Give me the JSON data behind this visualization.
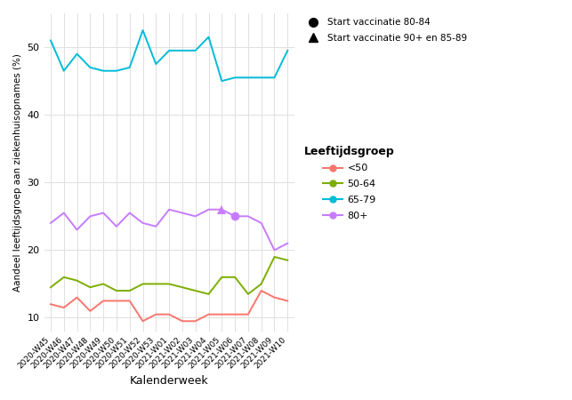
{
  "weeks": [
    "2020-W45",
    "2020-W46",
    "2020-W47",
    "2020-W48",
    "2020-W49",
    "2020-W50",
    "2020-W51",
    "2020-W52",
    "2020-W53",
    "2021-W01",
    "2021-W02",
    "2021-W03",
    "2021-W04",
    "2021-W05",
    "2021-W06",
    "2021-W07",
    "2021-W08",
    "2021-W09",
    "2021-W10"
  ],
  "lt50": [
    12,
    11.5,
    13,
    11,
    12.5,
    12.5,
    12.5,
    9.5,
    10.5,
    10.5,
    9.5,
    9.5,
    10.5,
    10.5,
    10.5,
    10.5,
    14,
    13,
    12.5
  ],
  "lt5064": [
    14.5,
    16,
    15.5,
    14.5,
    15,
    14,
    14,
    15,
    15,
    15,
    14.5,
    14,
    13.5,
    16,
    16,
    13.5,
    15,
    19,
    18.5
  ],
  "lt6579": [
    51,
    46.5,
    49,
    47,
    46.5,
    46.5,
    47,
    52.5,
    47.5,
    49.5,
    49.5,
    49.5,
    51.5,
    45,
    45.5,
    45.5,
    45.5,
    45.5,
    49.5
  ],
  "lt80": [
    24,
    25.5,
    23,
    25,
    25.5,
    23.5,
    25.5,
    24,
    23.5,
    26,
    25.5,
    25,
    26,
    26,
    25,
    25,
    24,
    20,
    21
  ],
  "tri_idx": 13,
  "cir_idx": 14,
  "color_lt50": "#f8766d",
  "color_lt5064": "#7cae00",
  "color_lt6579": "#00bcd8",
  "color_lt80": "#c77cff",
  "xlabel": "Kalenderweek",
  "ylabel": "Aandeel leeftijdsgroep aan ziekenhuisopnames (%)",
  "ylim": [
    8,
    55
  ],
  "yticks": [
    10,
    20,
    30,
    40,
    50
  ],
  "plot_bg": "#ffffff",
  "fig_bg": "#ffffff",
  "grid_color": "#e0e0e0",
  "legend_title": "Leeftijdsgroep",
  "annot_circle_label": "Start vaccinatie 80-84",
  "annot_triangle_label": "Start vaccinatie 90+ en 85-89"
}
